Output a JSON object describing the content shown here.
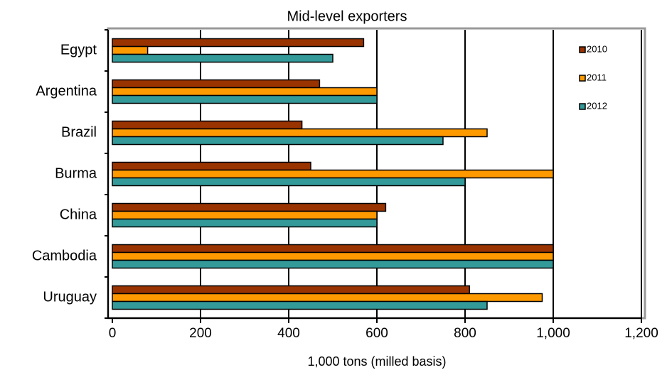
{
  "chart_data": {
    "type": "hbar",
    "title": "Mid-level exporters",
    "xlabel": "1,000 tons (milled basis)",
    "categories": [
      "Egypt",
      "Argentina",
      "Brazil",
      "Burma",
      "China",
      "Cambodia",
      "Uruguay"
    ],
    "series": [
      {
        "name": "2010",
        "color": "#993300",
        "values": [
          570,
          470,
          430,
          450,
          620,
          1000,
          810
        ]
      },
      {
        "name": "2011",
        "color": "#ff9900",
        "values": [
          80,
          600,
          850,
          1000,
          600,
          1000,
          975
        ]
      },
      {
        "name": "2012",
        "color": "#339999",
        "values": [
          500,
          600,
          750,
          800,
          600,
          1000,
          850
        ]
      }
    ],
    "xlim": [
      0,
      1200
    ],
    "xticks": [
      0,
      200,
      400,
      600,
      800,
      {
        "value": 1000,
        "label": "1,000"
      },
      {
        "value": 1200,
        "label": "1,200"
      }
    ],
    "grid": true,
    "legend": "right"
  }
}
